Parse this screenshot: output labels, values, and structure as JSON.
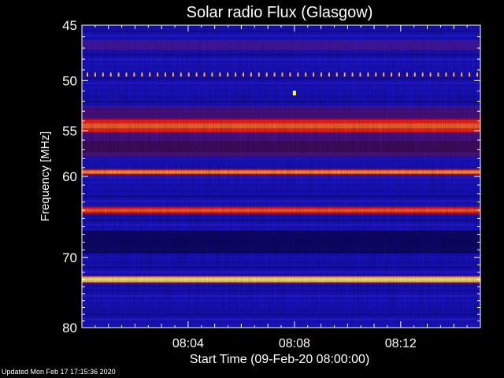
{
  "chart_data": {
    "type": "heatmap",
    "title": "Solar radio Flux (Glasgow)",
    "xlabel": "Start Time (09-Feb-20 08:00:00)",
    "ylabel": "Frequency [MHz]",
    "x_ticks": [
      "08:04",
      "08:08",
      "08:12"
    ],
    "x_range": [
      "08:00:00",
      "08:15:00"
    ],
    "y_ticks": [
      45,
      50,
      55,
      60,
      70,
      80
    ],
    "y_range": [
      45,
      80
    ],
    "y_scale": "log",
    "colormap": "blue-red-yellow",
    "background_color": "#1a12c8",
    "bright_bands_mhz": [
      {
        "freq": 54.5,
        "width": 1.3,
        "intensity": "red"
      },
      {
        "freq": 59.5,
        "width": 0.5,
        "intensity": "orange"
      },
      {
        "freq": 64.0,
        "width": 0.7,
        "intensity": "red"
      },
      {
        "freq": 73.0,
        "width": 0.8,
        "intensity": "yellow"
      }
    ],
    "dark_bands_mhz": [
      {
        "freq": 56.7,
        "width": 1.2
      },
      {
        "freq": 68.0,
        "width": 3.0
      }
    ],
    "dotted_line_mhz": 49.4,
    "bright_spot": {
      "time": "08:08",
      "freq": 51.2
    }
  },
  "footer": {
    "updated": "Updated Mon Feb 17 17:15:36 2020"
  }
}
